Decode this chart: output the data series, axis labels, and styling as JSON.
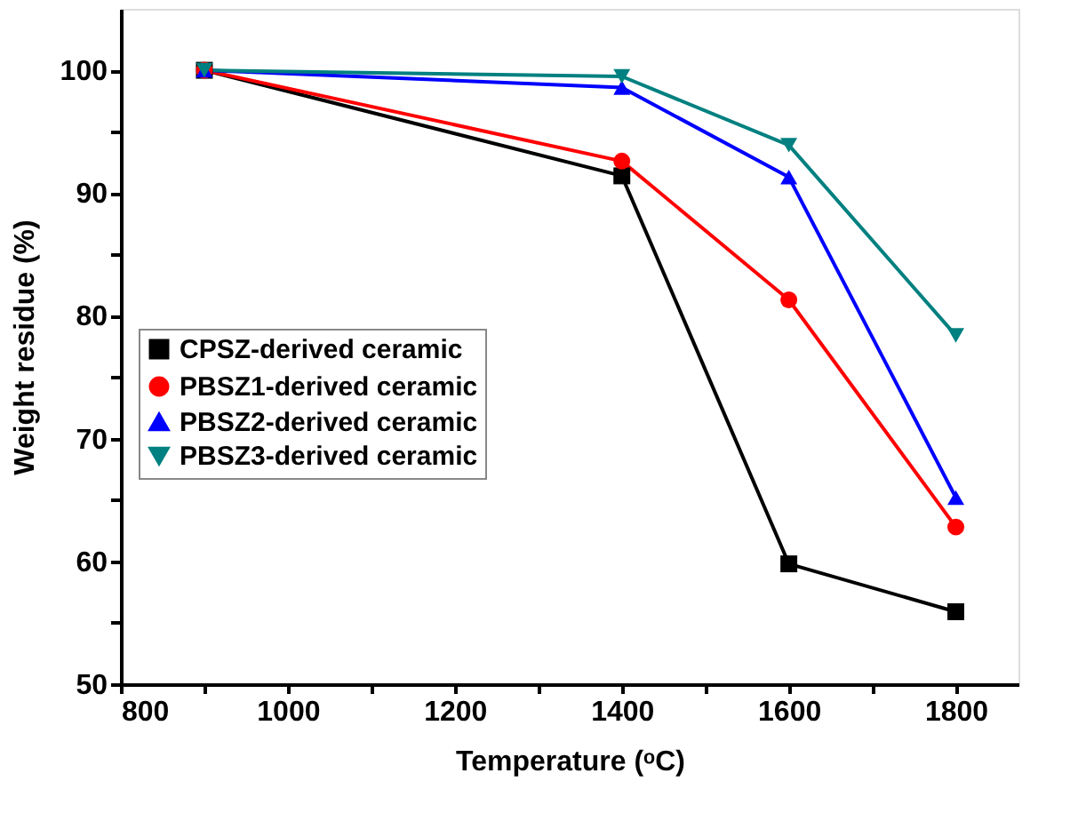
{
  "chart_data": {
    "type": "line",
    "xlabel": "Temperature (ᵒC)",
    "ylabel": "Weight residue (%)",
    "x": [
      900,
      1400,
      1600,
      1800
    ],
    "series": [
      {
        "name": "CPSZ-derived ceramic",
        "color": "#000000",
        "marker": "square",
        "values": [
          100,
          91.4,
          59.8,
          55.9
        ]
      },
      {
        "name": "PBSZ1-derived ceramic",
        "color": "#ff0000",
        "marker": "circle",
        "values": [
          100,
          92.6,
          81.3,
          62.8
        ]
      },
      {
        "name": "PBSZ2-derived ceramic",
        "color": "#0000ff",
        "marker": "triangle",
        "values": [
          100,
          98.6,
          91.3,
          65.2
        ]
      },
      {
        "name": "PBSZ3-derived ceramic",
        "color": "#008080",
        "marker": "triangle-down",
        "values": [
          100,
          99.5,
          93.9,
          78.4
        ]
      }
    ],
    "xlim": [
      800,
      1875
    ],
    "ylim": [
      50,
      105
    ],
    "xticks": [
      800,
      {
        "value": 900,
        "label": null
      },
      1000,
      {
        "value": 1100,
        "label": null
      },
      1200,
      {
        "value": 1300,
        "label": null
      },
      1400,
      {
        "value": 1500,
        "label": null
      },
      1600,
      {
        "value": 1700,
        "label": null
      },
      1800
    ],
    "yticks": [
      50,
      {
        "value": 55,
        "label": null
      },
      60,
      {
        "value": 65,
        "label": null
      },
      70,
      {
        "value": 75,
        "label": null
      },
      80,
      {
        "value": 85,
        "label": null
      },
      90,
      {
        "value": 95,
        "label": null
      },
      100
    ],
    "legend": "left",
    "grid": false,
    "line_style": "solid"
  }
}
